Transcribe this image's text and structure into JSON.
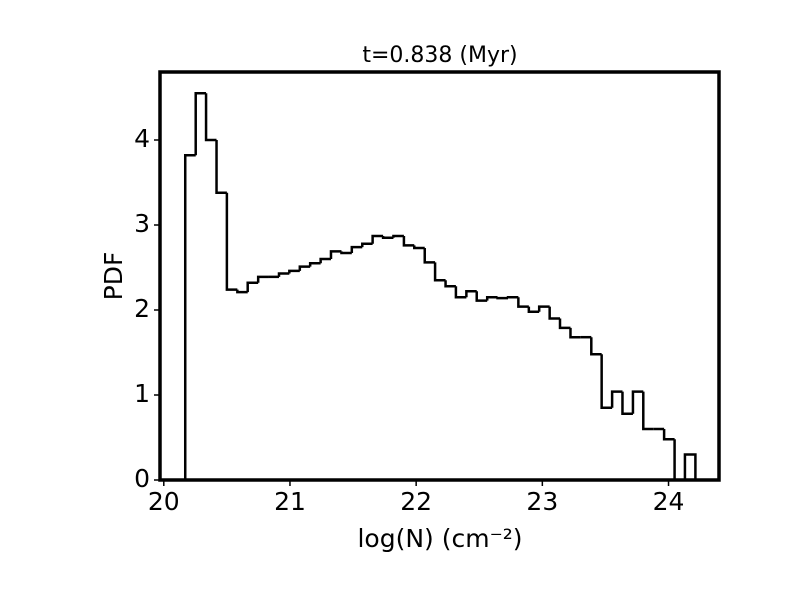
{
  "chart_data": {
    "type": "histogram",
    "title": "t=0.838 (Myr)",
    "xlabel": "log(N) (cm⁻²)",
    "ylabel": "PDF",
    "bins": [
      20.17,
      20.253,
      20.335,
      20.418,
      20.5,
      20.583,
      20.665,
      20.748,
      20.83,
      20.913,
      20.995,
      21.078,
      21.16,
      21.243,
      21.325,
      21.408,
      21.49,
      21.573,
      21.655,
      21.738,
      21.82,
      21.903,
      21.985,
      22.068,
      22.15,
      22.233,
      22.315,
      22.398,
      22.48,
      22.563,
      22.645,
      22.728,
      22.81,
      22.893,
      22.975,
      23.058,
      23.14,
      23.223,
      23.305,
      23.388,
      23.47,
      23.553,
      23.635,
      23.718,
      23.8,
      23.883,
      23.965,
      24.048,
      24.13,
      24.213
    ],
    "values": [
      3.82,
      4.55,
      4.0,
      3.38,
      2.24,
      2.21,
      2.32,
      2.39,
      2.39,
      2.43,
      2.46,
      2.51,
      2.55,
      2.6,
      2.69,
      2.67,
      2.74,
      2.78,
      2.87,
      2.85,
      2.87,
      2.76,
      2.73,
      2.56,
      2.35,
      2.28,
      2.15,
      2.22,
      2.11,
      2.15,
      2.14,
      2.15,
      2.04,
      1.98,
      2.04,
      1.9,
      1.79,
      1.68,
      1.68,
      1.48,
      0.85,
      1.04,
      0.78,
      1.04,
      0.6,
      0.6,
      0.48,
      0,
      0.3
    ],
    "color": "#000000",
    "xlim": [
      19.97,
      24.4
    ],
    "xticks": [
      20,
      21,
      22,
      23,
      24
    ],
    "ylim": [
      0,
      4.8
    ],
    "yticks": [
      0,
      1,
      2,
      3,
      4
    ]
  }
}
